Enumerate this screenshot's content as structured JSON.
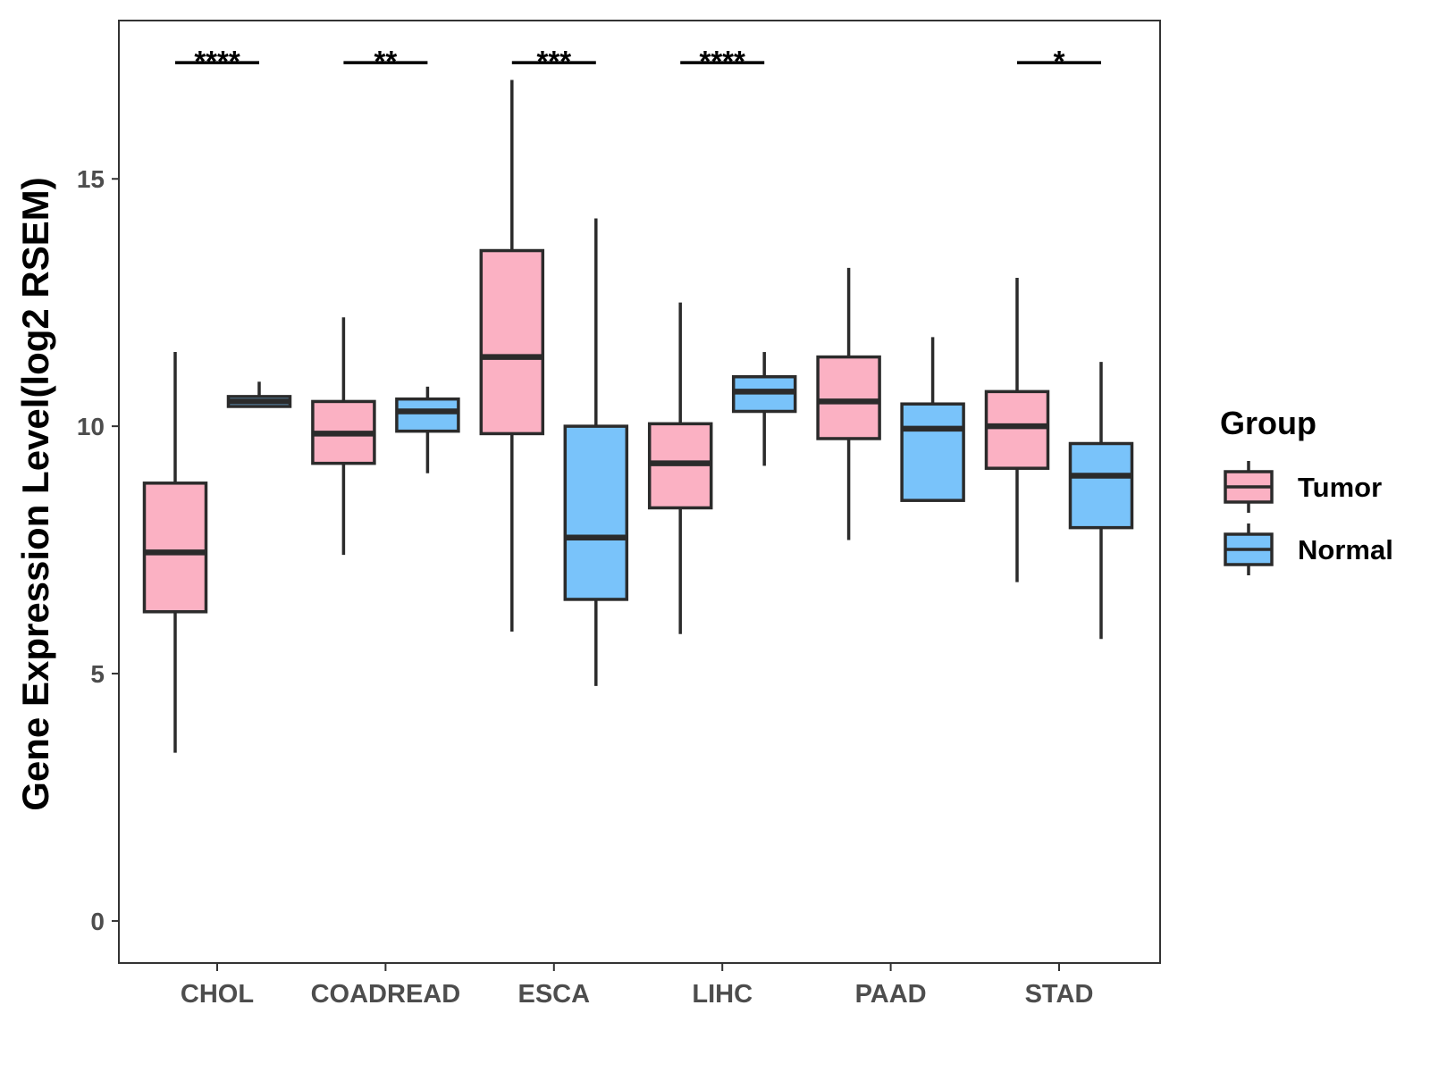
{
  "chart_data": {
    "type": "boxplot",
    "title": "",
    "xlabel": "",
    "ylabel": "Gene Expression Level(log2 RSEM)",
    "ylim": [
      -0.85,
      18.2
    ],
    "yticks": [
      0,
      5,
      10,
      15
    ],
    "grid": false,
    "legend_position": "right",
    "legend_title": "Group",
    "categories": [
      "CHOL",
      "COADREAD",
      "ESCA",
      "LIHC",
      "PAAD",
      "STAD"
    ],
    "series": [
      {
        "name": "Tumor",
        "color": "#FBB1C3",
        "boxes": [
          {
            "category": "CHOL",
            "min": 3.4,
            "q1": 6.25,
            "median": 7.45,
            "q3": 8.85,
            "max": 11.5
          },
          {
            "category": "COADREAD",
            "min": 7.4,
            "q1": 9.25,
            "median": 9.85,
            "q3": 10.5,
            "max": 12.2
          },
          {
            "category": "ESCA",
            "min": 5.85,
            "q1": 9.85,
            "median": 11.4,
            "q3": 13.55,
            "max": 17.0
          },
          {
            "category": "LIHC",
            "min": 5.8,
            "q1": 8.35,
            "median": 9.25,
            "q3": 10.05,
            "max": 12.5
          },
          {
            "category": "PAAD",
            "min": 7.7,
            "q1": 9.75,
            "median": 10.5,
            "q3": 11.4,
            "max": 13.2
          },
          {
            "category": "STAD",
            "min": 6.85,
            "q1": 9.15,
            "median": 10.0,
            "q3": 10.7,
            "max": 13.0
          }
        ]
      },
      {
        "name": "Normal",
        "color": "#79C3FA",
        "boxes": [
          {
            "category": "CHOL",
            "min": 10.4,
            "q1": 10.4,
            "median": 10.5,
            "q3": 10.6,
            "max": 10.9
          },
          {
            "category": "COADREAD",
            "min": 9.05,
            "q1": 9.9,
            "median": 10.3,
            "q3": 10.55,
            "max": 10.8
          },
          {
            "category": "ESCA",
            "min": 4.75,
            "q1": 6.5,
            "median": 7.75,
            "q3": 10.0,
            "max": 14.2
          },
          {
            "category": "LIHC",
            "min": 9.2,
            "q1": 10.3,
            "median": 10.7,
            "q3": 11.0,
            "max": 11.5
          },
          {
            "category": "PAAD",
            "min": 8.5,
            "q1": 8.5,
            "median": 9.95,
            "q3": 10.45,
            "max": 11.8
          },
          {
            "category": "STAD",
            "min": 5.7,
            "q1": 7.95,
            "median": 9.0,
            "q3": 9.65,
            "max": 11.3
          }
        ]
      }
    ],
    "significance": [
      {
        "category": "CHOL",
        "label": "****"
      },
      {
        "category": "COADREAD",
        "label": "**"
      },
      {
        "category": "ESCA",
        "label": "***"
      },
      {
        "category": "LIHC",
        "label": "****"
      },
      {
        "category": "STAD",
        "label": "*"
      }
    ],
    "significance_level": 17.35
  }
}
